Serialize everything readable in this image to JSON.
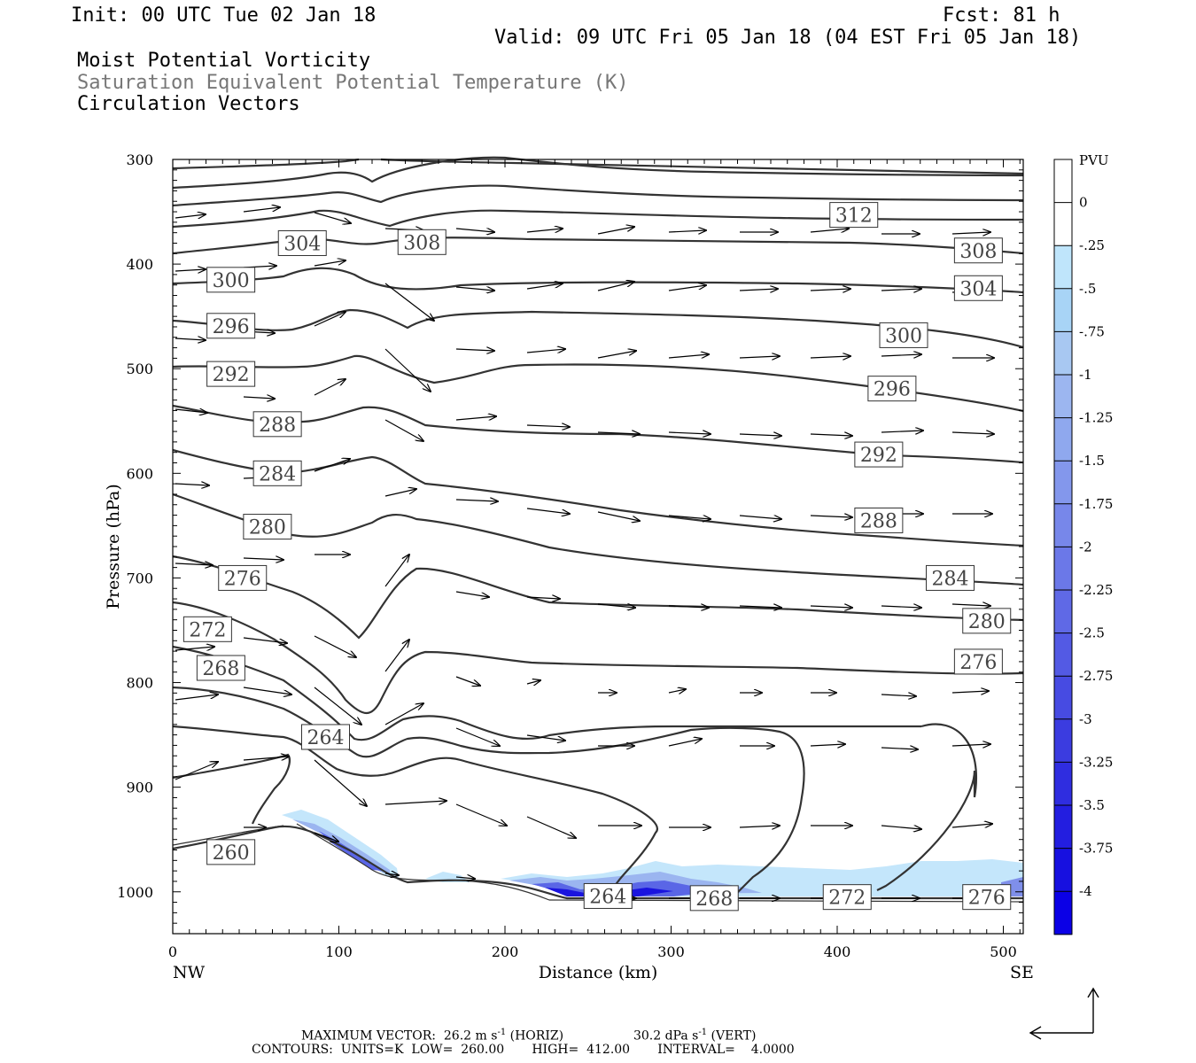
{
  "header": {
    "init": "Init: 00 UTC Tue 02 Jan 18",
    "fcst": "Fcst:   81 h",
    "valid": "Valid: 09 UTC Fri 05 Jan 18 (04 EST Fri 05 Jan 18)",
    "field1": "Moist Potential Vorticity",
    "field2": "Saturation Equivalent Potential Temperature (K)",
    "field3": "Circulation Vectors"
  },
  "footer": {
    "line1_label": "MAXIMUM VECTOR:",
    "line1_horiz": "26.2 m s",
    "line1_horiz_tail": " (HORIZ)",
    "line1_vert": "30.2 dPa s",
    "line1_vert_tail": " (VERT)",
    "exponent": "-1",
    "line2": "CONTOURS:  UNITS=K  LOW=  260.00       HIGH=  412.00       INTERVAL=    4.0000"
  },
  "colors": {
    "contour": "#333333",
    "pv_scale": [
      "#ffffff",
      "#ffffff",
      "#bfe5fb",
      "#a8d4f6",
      "#a8c8f2",
      "#9cb6f0",
      "#8fa8ee",
      "#8397ec",
      "#7787ea",
      "#6b78e8",
      "#5f69e6",
      "#535ae4",
      "#474be2",
      "#3b3ce0",
      "#2f2de0",
      "#231ee0",
      "#1710e0",
      "#0b00e6"
    ]
  },
  "chart_data": {
    "type": "cross-section",
    "xlabel": "Distance (km)",
    "ylabel": "Pressure (hPa)",
    "xlim": [
      0,
      512
    ],
    "ylim": [
      1040,
      300
    ],
    "x_ticks": [
      "0",
      "100",
      "200",
      "300",
      "400",
      "500"
    ],
    "y_ticks": [
      "300",
      "400",
      "500",
      "600",
      "700",
      "800",
      "900",
      "1000"
    ],
    "x_end_labels": [
      "NW",
      "SE"
    ],
    "colorbar": {
      "title": "PVU",
      "labels": [
        "0",
        "-.25",
        "-.5",
        "-.75",
        "-1",
        "-1.25",
        "-1.5",
        "-1.75",
        "-2",
        "-2.25",
        "-2.5",
        "-2.75",
        "-3",
        "-3.25",
        "-3.5",
        "-3.75",
        "-4"
      ]
    },
    "contour_labels": [
      {
        "value": "312",
        "x": 410,
        "p": 353
      },
      {
        "value": "308",
        "x": 150,
        "p": 379
      },
      {
        "value": "308",
        "x": 485,
        "p": 387
      },
      {
        "value": "304",
        "x": 78,
        "p": 380
      },
      {
        "value": "304",
        "x": 485,
        "p": 423
      },
      {
        "value": "300",
        "x": 35,
        "p": 415
      },
      {
        "value": "300",
        "x": 440,
        "p": 468
      },
      {
        "value": "296",
        "x": 35,
        "p": 459
      },
      {
        "value": "296",
        "x": 433,
        "p": 519
      },
      {
        "value": "292",
        "x": 35,
        "p": 505
      },
      {
        "value": "292",
        "x": 425,
        "p": 582
      },
      {
        "value": "288",
        "x": 63,
        "p": 553
      },
      {
        "value": "288",
        "x": 425,
        "p": 645
      },
      {
        "value": "284",
        "x": 63,
        "p": 600
      },
      {
        "value": "284",
        "x": 468,
        "p": 700
      },
      {
        "value": "280",
        "x": 57,
        "p": 651
      },
      {
        "value": "280",
        "x": 490,
        "p": 741
      },
      {
        "value": "276",
        "x": 42,
        "p": 700
      },
      {
        "value": "276",
        "x": 485,
        "p": 780
      },
      {
        "value": "272",
        "x": 21,
        "p": 749
      },
      {
        "value": "268",
        "x": 29,
        "p": 786
      },
      {
        "value": "264",
        "x": 92,
        "p": 852
      },
      {
        "value": "260",
        "x": 35,
        "p": 962
      },
      {
        "value": "264",
        "x": 262,
        "p": 1004
      },
      {
        "value": "268",
        "x": 326,
        "p": 1006
      },
      {
        "value": "272",
        "x": 406,
        "p": 1005
      },
      {
        "value": "276",
        "x": 490,
        "p": 1005
      }
    ]
  }
}
